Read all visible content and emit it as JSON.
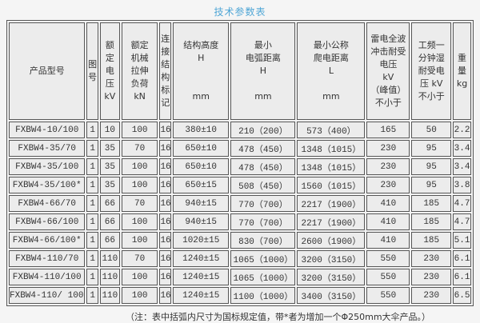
{
  "page": {
    "title": "技术参数表",
    "footnote": "（注：表中括弧内尺寸为国标规定值，带*者为增加一个Φ250mm大伞产品。）"
  },
  "colors": {
    "title_blue": "#4fa6d6",
    "cell_background": "#ececec",
    "page_background": "#f5f5f5",
    "border": "#565656",
    "text": "#333333"
  },
  "table": {
    "headers": [
      {
        "key": "product-model",
        "lines": [
          "产品型号"
        ]
      },
      {
        "key": "figure-no",
        "lines": [
          "图",
          "号"
        ]
      },
      {
        "key": "rated-voltage",
        "lines": [
          "额",
          "定",
          "电",
          "压",
          "kV"
        ]
      },
      {
        "key": "rated-mechanical-tensile-load",
        "lines": [
          "额定",
          "机械",
          "拉伸",
          "负荷",
          "kN"
        ]
      },
      {
        "key": "connection-structure-mark",
        "lines": [
          "连",
          "接",
          "结",
          "构",
          "标",
          "记"
        ]
      },
      {
        "key": "structure-height",
        "lines": [
          "结构高度",
          "H",
          "",
          "",
          "mm"
        ]
      },
      {
        "key": "min-arc-distance",
        "lines": [
          "最小",
          "电弧距离",
          "H",
          "",
          "mm"
        ]
      },
      {
        "key": "min-nominal-creepage-distance",
        "lines": [
          "最小公称",
          "爬电距离",
          "L",
          "",
          "mm"
        ]
      },
      {
        "key": "lightning-impulse-withstand-voltage",
        "lines": [
          "雷电全波",
          "冲击耐受",
          "电压",
          "kV",
          "（峰值）",
          "不小于"
        ]
      },
      {
        "key": "power-freq-wet-withstand-voltage",
        "lines": [
          "工频一",
          "分钟湿",
          "耐受电",
          "压 kV",
          "不小于"
        ]
      },
      {
        "key": "weight",
        "lines": [
          "重",
          "量",
          "kg"
        ]
      }
    ],
    "rows": [
      [
        "FXBW4-10/100",
        "1",
        "10",
        "100",
        "16",
        "380±10",
        "210（200）",
        "573（400）",
        "165",
        "50",
        "2.2"
      ],
      [
        "FXBW4-35/70",
        "1",
        "35",
        "70",
        "16",
        "650±10",
        "478（450）",
        "1348（1015）",
        "230",
        "95",
        "3.4"
      ],
      [
        "FXBW4-35/100",
        "1",
        "35",
        "100",
        "16",
        "650±10",
        "478（450）",
        "1348（1015）",
        "230",
        "95",
        "3.4"
      ],
      [
        "FXBW4-35/100*",
        "1",
        "35",
        "100",
        "16",
        "650±15",
        "508（450）",
        "1560（1015）",
        "230",
        "95",
        "3.8"
      ],
      [
        "FXBW4-66/70",
        "1",
        "66",
        "70",
        "16",
        "940±15",
        "770（700）",
        "2217（1900）",
        "410",
        "185",
        "4.7"
      ],
      [
        "FXBW4-66/100",
        "1",
        "66",
        "100",
        "16",
        "940±15",
        "770（700）",
        "2217（1900）",
        "410",
        "185",
        "4.7"
      ],
      [
        "FXBW4-66/100*",
        "1",
        "66",
        "100",
        "16",
        "1020±15",
        "830（700）",
        "2600（1900）",
        "410",
        "185",
        "5.1"
      ],
      [
        "FXBW4-110/70",
        "1",
        "110",
        "70",
        "16",
        "1240±15",
        "1065（1000）",
        "3200（3150）",
        "550",
        "230",
        "6.1"
      ],
      [
        "FXBW4-110/100",
        "1",
        "110",
        "100",
        "16",
        "1240±15",
        "1065（1000）",
        "3200（3150）",
        "550",
        "230",
        "6.1"
      ],
      [
        "FXBW4-110/ 100*",
        "1",
        "110",
        "100",
        "16",
        "1240±15",
        "1100（1000）",
        "3400（3150）",
        "550",
        "230",
        "6.5"
      ]
    ]
  }
}
